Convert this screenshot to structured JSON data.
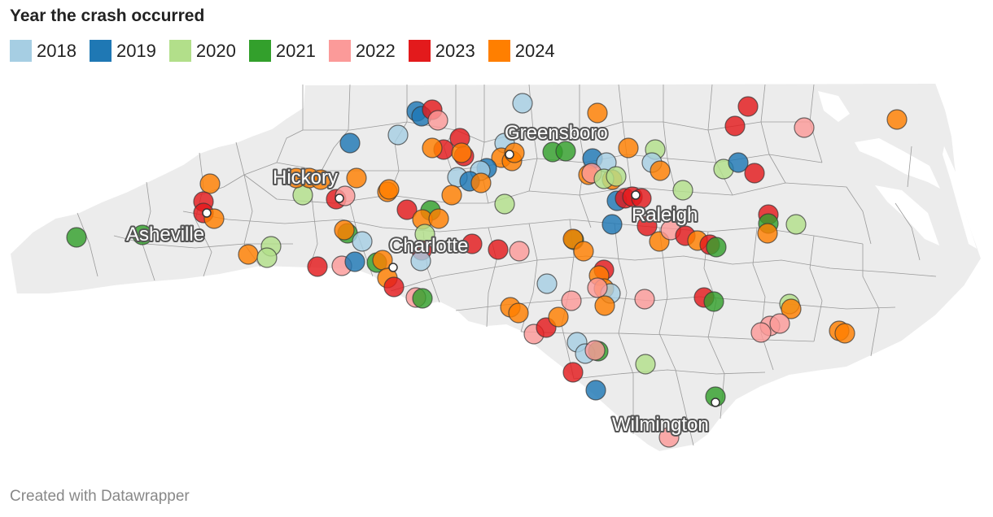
{
  "title": "Year the crash occurred",
  "legend": [
    {
      "label": "2018",
      "color": "#a6cee3"
    },
    {
      "label": "2019",
      "color": "#1f78b4"
    },
    {
      "label": "2020",
      "color": "#b2df8a"
    },
    {
      "label": "2021",
      "color": "#33a02c"
    },
    {
      "label": "2022",
      "color": "#fb9a99"
    },
    {
      "label": "2023",
      "color": "#e31a1c"
    },
    {
      "label": "2024",
      "color": "#ff7f00"
    }
  ],
  "cities": [
    {
      "label": "Greensboro"
    },
    {
      "label": "Hickory"
    },
    {
      "label": "Asheville"
    },
    {
      "label": "Charlotte"
    },
    {
      "label": "Raleigh"
    },
    {
      "label": "Wilmington"
    }
  ],
  "colors": {
    "land": "#ececec",
    "border": "#ffffff",
    "county_line": "#9a9a9a",
    "marker_stroke": "#333333"
  },
  "credit": "Created with Datawrapper"
}
